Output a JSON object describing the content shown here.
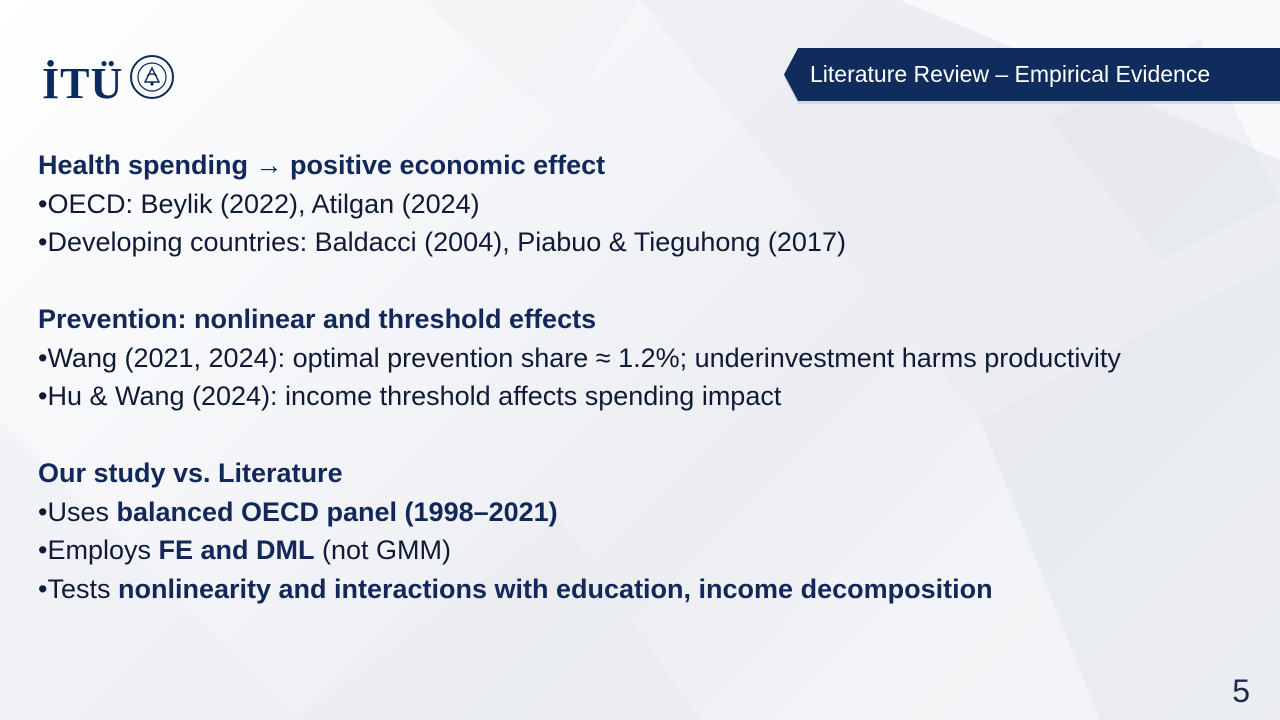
{
  "brand": {
    "logo_text": "İTÜ",
    "accent_color": "#0f2c5c"
  },
  "header": {
    "section_label": "Literature Review – Empirical Evidence"
  },
  "sections": [
    {
      "heading": "Health spending → positive economic effect",
      "bullets": [
        "•OECD: Beylik (2022), Atilgan (2024)",
        "•Developing countries: Baldacci (2004), Piabuo & Tieguhong (2017)"
      ]
    },
    {
      "heading": "Prevention: nonlinear and threshold effects",
      "bullets": [
        "•Wang (2021, 2024): optimal prevention share ≈ 1.2%; underinvestment harms productivity",
        "•Hu & Wang (2024): income threshold affects spending impact"
      ]
    },
    {
      "heading": "Our study vs. Literature",
      "bullets": [
        {
          "prefix": "•Uses ",
          "bold": "balanced OECD panel (1998–2021)",
          "suffix": ""
        },
        {
          "prefix": "•Employs ",
          "bold": "FE and DML",
          "suffix": " (not GMM)"
        },
        {
          "prefix": "•Tests ",
          "bold": "nonlinearity and interactions with education, income decomposition",
          "suffix": ""
        }
      ]
    }
  ],
  "footer": {
    "slide_number": "5"
  }
}
